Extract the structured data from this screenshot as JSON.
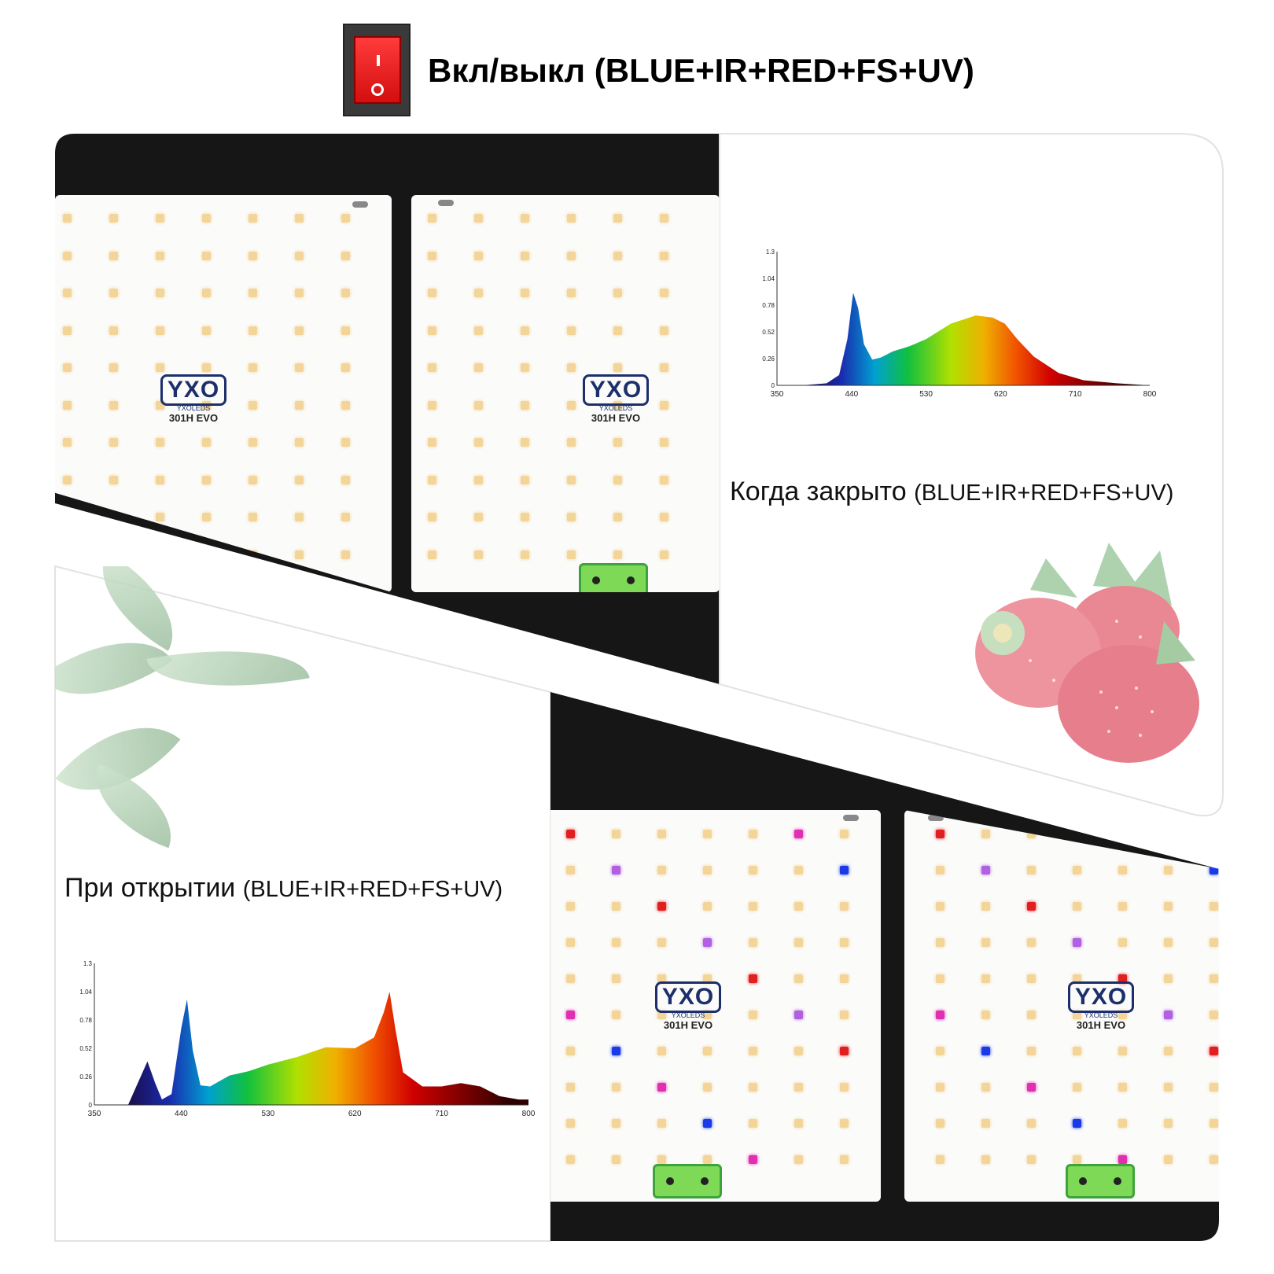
{
  "header": {
    "title": "Вкл/выкл (BLUE+IR+RED+FS+UV)",
    "switch_on_symbol": "I",
    "switch_off_symbol": "O"
  },
  "closed_section": {
    "label_main": "Когда закрыто ",
    "label_spectrum": "(BLUE+IR+RED+FS+UV)"
  },
  "open_section": {
    "label_main": "При открытии ",
    "label_spectrum": "(BLUE+IR+RED+FS+UV)"
  },
  "board": {
    "logo": "YXO",
    "brand": "YXOLEDS",
    "model": "301H EVO"
  },
  "colors": {
    "switch_red": "#e01818",
    "board_white": "#fbfbfa",
    "dark_bg": "#161616",
    "connector_green": "#7ed957",
    "led_warm": "#f3d59a",
    "led_red": "#e02020",
    "led_magenta": "#e030b0",
    "led_purple": "#b060e0",
    "led_blue": "#1a3ae8"
  },
  "icons": [
    "power-rocker-switch-icon",
    "strawberry-image",
    "plant-leaves-image"
  ],
  "chart_data": [
    {
      "type": "area",
      "name_ref": "closed",
      "x": [
        350,
        380,
        410,
        425,
        435,
        442,
        448,
        455,
        465,
        475,
        490,
        510,
        530,
        560,
        590,
        610,
        625,
        640,
        660,
        690,
        720,
        760,
        800
      ],
      "y": [
        0,
        0,
        0.02,
        0.1,
        0.45,
        0.9,
        0.75,
        0.4,
        0.25,
        0.27,
        0.33,
        0.38,
        0.45,
        0.6,
        0.68,
        0.66,
        0.6,
        0.45,
        0.28,
        0.12,
        0.05,
        0.02,
        0
      ],
      "xticks": [
        350,
        440,
        530,
        620,
        710,
        800
      ],
      "yticks": [
        0,
        0.26,
        0.52,
        0.78,
        1.04,
        1.3
      ],
      "xlim": [
        350,
        800
      ],
      "ylim": [
        0,
        1.3
      ],
      "title": "",
      "xlabel": "",
      "ylabel": ""
    },
    {
      "type": "area",
      "name_ref": "open",
      "x": [
        350,
        385,
        395,
        405,
        413,
        420,
        430,
        440,
        446,
        452,
        460,
        470,
        490,
        510,
        530,
        560,
        590,
        620,
        640,
        650,
        656,
        662,
        670,
        690,
        710,
        730,
        750,
        770,
        790,
        800
      ],
      "y": [
        0,
        0,
        0.2,
        0.4,
        0.2,
        0.05,
        0.1,
        0.7,
        0.97,
        0.5,
        0.18,
        0.17,
        0.27,
        0.31,
        0.37,
        0.44,
        0.53,
        0.52,
        0.62,
        0.85,
        1.04,
        0.7,
        0.3,
        0.17,
        0.17,
        0.2,
        0.17,
        0.08,
        0.05,
        0.05
      ],
      "xticks": [
        350,
        440,
        530,
        620,
        710,
        800
      ],
      "yticks": [
        0,
        0.26,
        0.52,
        0.78,
        1.04,
        1.3
      ],
      "xlim": [
        350,
        800
      ],
      "ylim": [
        0,
        1.3
      ],
      "title": "",
      "xlabel": "",
      "ylabel": ""
    }
  ]
}
